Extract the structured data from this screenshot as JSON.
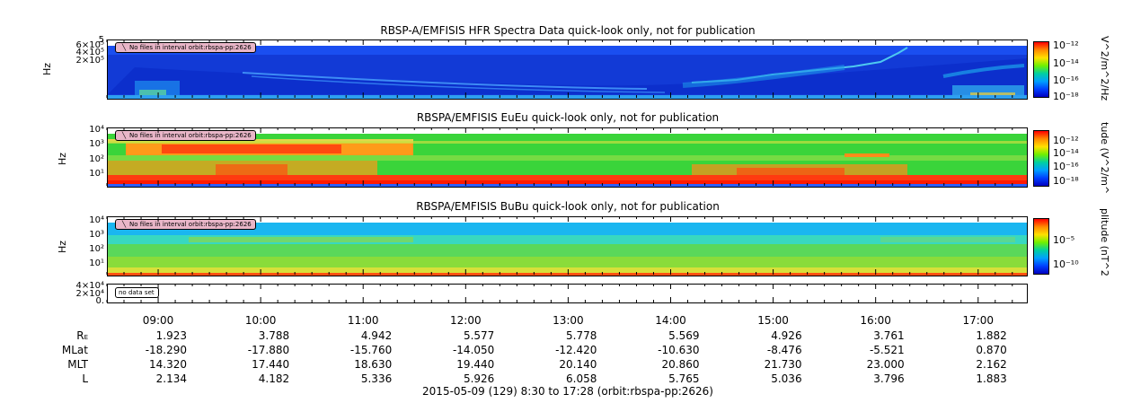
{
  "chart_data": [
    {
      "type": "heatmap",
      "title": "RBSP-A/EMFISIS  HFR Spectra Data quick-look only, not for publication",
      "ylabel": "Hz",
      "y_tick_labels": [
        "2×10⁵",
        "4×10⁵",
        "6×10⁵"
      ],
      "y_top_label": "5",
      "note": "No files in interval orbit:rbspa-pp:2626",
      "colorbar": {
        "unit": "V^2/m^2/Hz",
        "tick_labels": [
          "10⁻¹²",
          "10⁻¹⁴",
          "10⁻¹⁶",
          "10⁻¹⁸"
        ]
      }
    },
    {
      "type": "heatmap",
      "title": "RBSPA/EMFISIS  EuEu quick-look only, not for publication",
      "ylabel": "Hz",
      "y_tick_labels": [
        "10⁴",
        "10³",
        "10²",
        "10¹"
      ],
      "note": "No files in interval orbit:rbspa-pp:2626",
      "colorbar": {
        "unit": "tude (V^2/m^",
        "tick_labels": [
          "10⁻¹²",
          "10⁻¹⁴",
          "10⁻¹⁶",
          "10⁻¹⁸"
        ]
      }
    },
    {
      "type": "heatmap",
      "title": "RBSPA/EMFISIS  BuBu quick-look only, not for publication",
      "ylabel": "Hz",
      "y_tick_labels": [
        "10⁴",
        "10³",
        "10²",
        "10¹"
      ],
      "note": "No files in interval orbit:rbspa-pp:2626",
      "colorbar": {
        "unit": "plitude (nT^2",
        "tick_labels": [
          "10⁻⁵",
          "10⁻¹⁰"
        ]
      }
    },
    {
      "type": "line",
      "ylabel": "",
      "y_tick_labels": [
        "4×10⁴",
        "2×10⁴",
        "0."
      ],
      "note": "no data set"
    }
  ],
  "x_axis": {
    "times": [
      "09:00",
      "10:00",
      "11:00",
      "12:00",
      "13:00",
      "14:00",
      "15:00",
      "16:00",
      "17:00"
    ],
    "caption": "2015-05-09 (129) 8:30 to 17:28 (orbit:rbspa-pp:2626)"
  },
  "ephemeris": [
    {
      "label": "R",
      "label_sub": "E",
      "values": [
        "1.923",
        "3.788",
        "4.942",
        "5.577",
        "5.778",
        "5.569",
        "4.926",
        "3.761",
        "1.882"
      ]
    },
    {
      "label": "MLat",
      "values": [
        "-18.290",
        "-17.880",
        "-15.760",
        "-14.050",
        "-12.420",
        "-10.630",
        "-8.476",
        "-5.521",
        "0.870"
      ]
    },
    {
      "label": "MLT",
      "values": [
        "14.320",
        "17.440",
        "18.630",
        "19.440",
        "20.140",
        "20.860",
        "21.730",
        "23.000",
        "2.162"
      ]
    },
    {
      "label": "L",
      "values": [
        "2.134",
        "4.182",
        "5.336",
        "5.926",
        "6.058",
        "5.765",
        "5.036",
        "3.796",
        "1.883"
      ]
    }
  ]
}
